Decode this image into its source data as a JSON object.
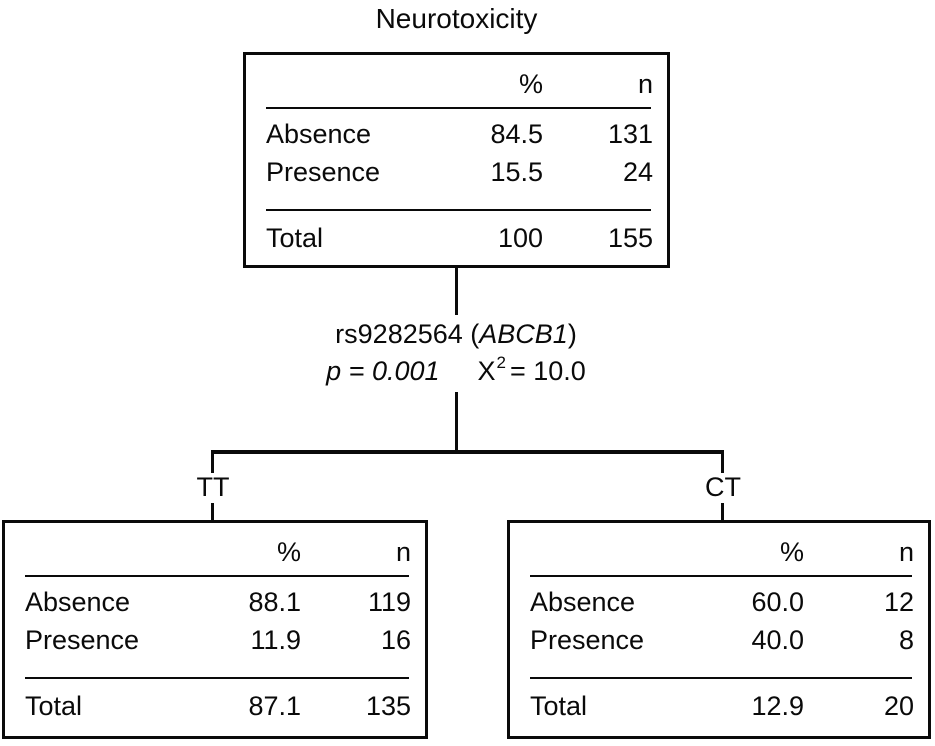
{
  "diagram": {
    "title": "Neurotoxicity",
    "columns": {
      "percent": "%",
      "count": "n"
    },
    "root": {
      "rows": [
        {
          "label": "Absence",
          "percent": "84.5",
          "count": "131"
        },
        {
          "label": "Presence",
          "percent": "15.5",
          "count": "24"
        }
      ],
      "total": {
        "label": "Total",
        "percent": "100",
        "count": "155"
      }
    },
    "split": {
      "snp_prefix": "rs9282564 (",
      "gene": "ABCB1",
      "snp_suffix": ")",
      "p_value": "p = 0.001",
      "chi_symbol": "X",
      "chi_exponent": "2",
      "chi_value": "= 10.0"
    },
    "branches": [
      {
        "genotype": "TT",
        "rows": [
          {
            "label": "Absence",
            "percent": "88.1",
            "count": "119"
          },
          {
            "label": "Presence",
            "percent": "11.9",
            "count": "16"
          }
        ],
        "total": {
          "label": "Total",
          "percent": "87.1",
          "count": "135"
        }
      },
      {
        "genotype": "CT",
        "rows": [
          {
            "label": "Absence",
            "percent": "60.0",
            "count": "12"
          },
          {
            "label": "Presence",
            "percent": "40.0",
            "count": "8"
          }
        ],
        "total": {
          "label": "Total",
          "percent": "12.9",
          "count": "20"
        }
      }
    ]
  }
}
